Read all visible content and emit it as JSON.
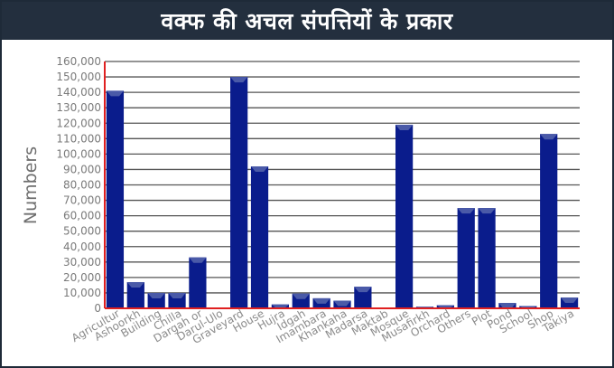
{
  "title": "वक्फ की अचल संपत्तियों के प्रकार",
  "colors": {
    "bar": "#0a1c8c",
    "bar_cap": "#4a5aa8",
    "grid": "#555555",
    "axis": "#e02020",
    "title_bg": "#232f3e"
  },
  "chart_data": {
    "type": "bar",
    "ylabel": "Numbers",
    "xlabel": "",
    "ylim": [
      0,
      160000
    ],
    "yticks": [
      "0",
      "10,000",
      "20,000",
      "30,000",
      "40,000",
      "50,000",
      "60,000",
      "70,000",
      "80,000",
      "90,000",
      "100,000",
      "110,000",
      "120,000",
      "130,000",
      "140,000",
      "150,000",
      "160,000"
    ],
    "categories": [
      "Agricultur",
      "Ashoorkh",
      "Building",
      "Chilla",
      "Dargah or",
      "Darul-Ulo",
      "Graveyard",
      "House",
      "Hujra",
      "Idgah",
      "Imambara",
      "Khankaha",
      "Madarsa",
      "Maktab",
      "Mosque",
      "Musafirkh",
      "Orchard",
      "Others",
      "Plot",
      "Pond",
      "School",
      "Shop",
      "Takiya"
    ],
    "values": [
      141000,
      17000,
      10000,
      10000,
      33000,
      0,
      150000,
      92000,
      2500,
      9500,
      6500,
      5000,
      14000,
      0,
      119000,
      1000,
      2000,
      65000,
      65000,
      3500,
      1500,
      113000,
      7000
    ],
    "grid": true
  }
}
